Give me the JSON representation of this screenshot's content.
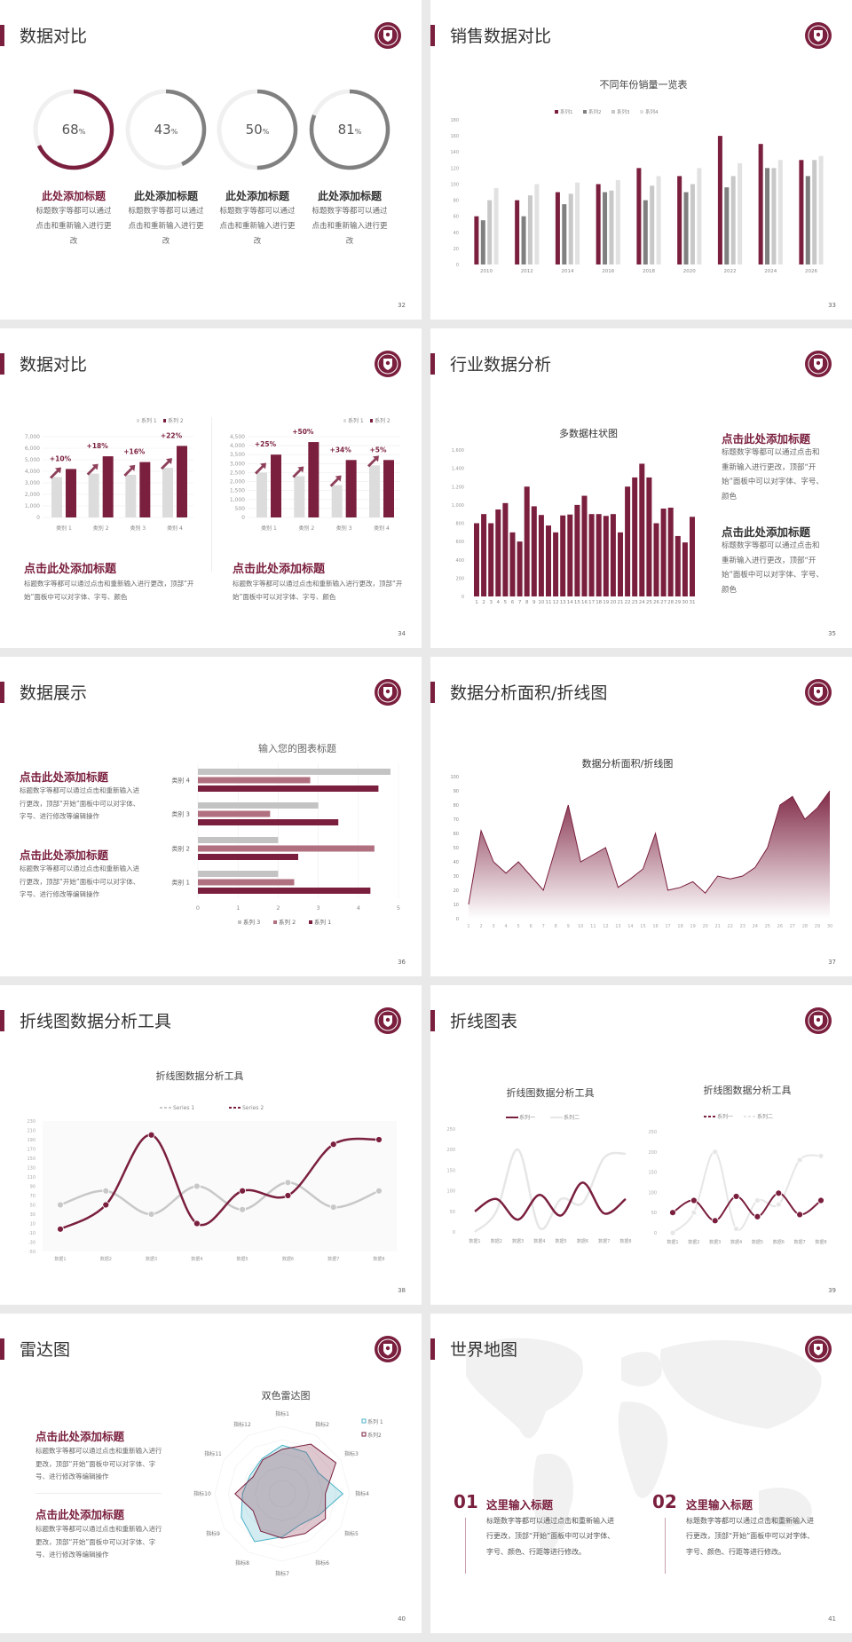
{
  "colors": {
    "accent": "#7a1f3d",
    "gray": "#808080",
    "light": "#c8c8c8",
    "lighter": "#e2e2e2",
    "pink": "#b07080",
    "teal": "#4bb3c8"
  },
  "logo_icon": "university-seal-icon",
  "slides": [
    {
      "page": "32",
      "title": "数据对比",
      "items": [
        {
          "value": 68,
          "title": "此处添加标题",
          "text": "标题数字等都可以通过点击和重新输入进行更改"
        },
        {
          "value": 43,
          "title": "此处添加标题",
          "text": "标题数字等都可以通过点击和重新输入进行更改"
        },
        {
          "value": 50,
          "title": "此处添加标题",
          "text": "标题数字等都可以通过点击和重新输入进行更改"
        },
        {
          "value": 81,
          "title": "此处添加标题",
          "text": "标题数字等都可以通过点击和重新输入进行更改"
        }
      ],
      "percent_sign": "%"
    },
    {
      "page": "33",
      "title": "销售数据对比"
    },
    {
      "page": "34",
      "title": "数据对比",
      "blocks": [
        {
          "title": "点击此处添加标题",
          "text": "标题数字等都可以通过点击和重新输入进行更改，顶部“开始”面板中可以对字体、字号、颜色"
        },
        {
          "title": "点击此处添加标题",
          "text": "标题数字等都可以通过点击和重新输入进行更改，顶部“开始”面板中可以对字体、字号、颜色"
        }
      ]
    },
    {
      "page": "35",
      "title": "行业数据分析",
      "blocks": [
        {
          "title": "点击此处添加标题",
          "text": "标题数字等都可以通过点击和重新输入进行更改，顶部“开始”面板中可以对字体、字号、颜色"
        },
        {
          "title": "点击此处添加标题",
          "text": "标题数字等都可以通过点击和重新输入进行更改，顶部“开始”面板中可以对字体、字号、颜色"
        }
      ]
    },
    {
      "page": "36",
      "title": "数据展示",
      "blocks": [
        {
          "title": "点击此处添加标题",
          "text": "标题数字等都可以通过点击和重新输入进行更改，顶部“开始”面板中可以对字体、字号、进行修改等编辑操作"
        },
        {
          "title": "点击此处添加标题",
          "text": "标题数字等都可以通过点击和重新输入进行更改，顶部“开始”面板中可以对字体、字号、进行修改等编辑操作"
        }
      ]
    },
    {
      "page": "37",
      "title": "数据分析面积/折线图"
    },
    {
      "page": "38",
      "title": "折线图数据分析工具"
    },
    {
      "page": "39",
      "title": "折线图表"
    },
    {
      "page": "40",
      "title": "雷达图",
      "blocks": [
        {
          "title": "点击此处添加标题",
          "text": "标题数字等都可以通过点击和重新输入进行更改，顶部“开始”面板中可以对字体、字号、进行修改等编辑操作"
        },
        {
          "title": "点击此处添加标题",
          "text": "标题数字等都可以通过点击和重新输入进行更改，顶部“开始”面板中可以对字体、字号、进行修改等编辑操作"
        }
      ]
    },
    {
      "page": "41",
      "title": "世界地图",
      "blocks": [
        {
          "num": "01",
          "title": "这里输入标题",
          "text": "标题数字等都可以通过点击和重新输入进行更改，顶部“开始”面板中可以对字体、字号、颜色、行距等进行修改。"
        },
        {
          "num": "02",
          "title": "这里输入标题",
          "text": "标题数字等都可以通过点击和重新输入进行更改，顶部“开始”面板中可以对字体、字号、颜色、行距等进行修改。"
        }
      ]
    }
  ],
  "chart_data": [
    {
      "id": "rings",
      "type": "pie",
      "title": "",
      "values": [
        68,
        43,
        50,
        81
      ]
    },
    {
      "id": "sales",
      "type": "bar",
      "title": "不同年份销量一览表",
      "categories": [
        "2010",
        "2012",
        "2014",
        "2016",
        "2018",
        "2020",
        "2022",
        "2024",
        "2026"
      ],
      "series": [
        {
          "name": "系列1",
          "values": [
            60,
            80,
            90,
            100,
            120,
            110,
            160,
            150,
            130
          ]
        },
        {
          "name": "系列2",
          "values": [
            55,
            60,
            75,
            90,
            80,
            90,
            96,
            120,
            110
          ]
        },
        {
          "name": "系列3",
          "values": [
            80,
            86,
            88,
            92,
            98,
            100,
            110,
            120,
            130
          ]
        },
        {
          "name": "系列4",
          "values": [
            95,
            100,
            102,
            105,
            110,
            120,
            126,
            130,
            135
          ]
        }
      ],
      "ylim": [
        0,
        180
      ],
      "ytick_step": 20,
      "legend": "top",
      "grid": false
    },
    {
      "id": "cmpA",
      "type": "bar",
      "title": "",
      "categories": [
        "类别 1",
        "类别 2",
        "类别 3",
        "类别 4"
      ],
      "series": [
        {
          "name": "系列 1",
          "values": [
            3500,
            3800,
            3700,
            4300
          ]
        },
        {
          "name": "系列 2",
          "values": [
            4200,
            5300,
            4800,
            6200
          ]
        }
      ],
      "annotations": [
        "+10%",
        "+18%",
        "+16%",
        "+22%"
      ],
      "ylim": [
        0,
        7000
      ],
      "ytick_step": 1000,
      "legend": "top-right",
      "grid": true
    },
    {
      "id": "cmpB",
      "type": "bar",
      "title": "",
      "categories": [
        "类别 1",
        "类别 2",
        "类别 3",
        "类别 4"
      ],
      "series": [
        {
          "name": "系列 1",
          "values": [
            2500,
            2300,
            1800,
            2900
          ]
        },
        {
          "name": "系列 2",
          "values": [
            3500,
            4200,
            3200,
            3200
          ]
        }
      ],
      "annotations": [
        "+25%",
        "+50%",
        "+34%",
        "+5%"
      ],
      "ylim": [
        0,
        4500
      ],
      "ytick_step": 500,
      "legend": "top-right",
      "grid": true
    },
    {
      "id": "multi",
      "type": "bar",
      "title": "多数据柱状图",
      "categories": [
        "1",
        "2",
        "3",
        "4",
        "5",
        "6",
        "7",
        "8",
        "9",
        "10",
        "11",
        "12",
        "13",
        "14",
        "15",
        "16",
        "17",
        "18",
        "19",
        "20",
        "21",
        "22",
        "23",
        "24",
        "25",
        "26",
        "27",
        "28",
        "29",
        "30",
        "31"
      ],
      "values": [
        800,
        900,
        800,
        950,
        1020,
        700,
        600,
        1200,
        985,
        890,
        775,
        700,
        885,
        895,
        1000,
        1100,
        900,
        900,
        880,
        900,
        700,
        1200,
        1300,
        1450,
        1300,
        800,
        960,
        970,
        660,
        590,
        870
      ],
      "ylim": [
        0,
        1600
      ],
      "ytick_step": 200,
      "grid": false
    },
    {
      "id": "hbar",
      "type": "bar",
      "orientation": "horizontal",
      "title": "输入您的图表标题",
      "categories": [
        "类别 1",
        "类别 2",
        "类别 3",
        "类别 4"
      ],
      "series": [
        {
          "name": "系列 1",
          "values": [
            4.3,
            2.5,
            3.5,
            4.5
          ]
        },
        {
          "name": "系列 2",
          "values": [
            2.4,
            4.4,
            1.8,
            2.8
          ]
        },
        {
          "name": "系列 3",
          "values": [
            2.0,
            2.0,
            3.0,
            4.8
          ]
        }
      ],
      "xlim": [
        0,
        5
      ],
      "xtick_step": 1,
      "legend": "bottom",
      "grid": true
    },
    {
      "id": "area",
      "type": "area",
      "title": "数据分析面积/折线图",
      "x": [
        1,
        2,
        3,
        4,
        5,
        6,
        7,
        8,
        9,
        10,
        11,
        12,
        13,
        14,
        15,
        16,
        17,
        18,
        19,
        20,
        21,
        22,
        23,
        24,
        25,
        26,
        27,
        28,
        29,
        30
      ],
      "values": [
        10,
        62,
        40,
        32,
        40,
        30,
        20,
        50,
        80,
        40,
        45,
        50,
        22,
        28,
        35,
        60,
        20,
        22,
        26,
        18,
        30,
        28,
        30,
        36,
        50,
        80,
        86,
        70,
        78,
        90
      ],
      "ylim": [
        0,
        100
      ],
      "ytick_step": 10,
      "grid": false
    },
    {
      "id": "line1",
      "type": "line",
      "title": "折线图数据分析工具",
      "categories": [
        "数据1",
        "数据2",
        "数据3",
        "数据4",
        "数据5",
        "数据6",
        "数据7",
        "数据8"
      ],
      "series": [
        {
          "name": "Series 1",
          "values": [
            50,
            80,
            30,
            90,
            40,
            98,
            45,
            80
          ]
        },
        {
          "name": "Series 2",
          "values": [
            -2,
            50,
            200,
            10,
            80,
            70,
            180,
            190
          ]
        }
      ],
      "ylim": [
        -50,
        230
      ],
      "ytick_step": 20,
      "legend": "top"
    },
    {
      "id": "line2",
      "type": "line",
      "title": "折线图数据分析工具",
      "categories": [
        "数据1",
        "数据2",
        "数据3",
        "数据4",
        "数据5",
        "数据6",
        "数据7",
        "数据8"
      ],
      "series": [
        {
          "name": "系列一",
          "values": [
            50,
            80,
            30,
            90,
            40,
            120,
            45,
            80
          ]
        },
        {
          "name": "系列二",
          "values": [
            0,
            50,
            200,
            10,
            80,
            70,
            180,
            190
          ]
        }
      ],
      "ylim": [
        0,
        250
      ],
      "ytick_step": 50,
      "legend": "top"
    },
    {
      "id": "line3",
      "type": "line",
      "title": "折线图数据分析工具",
      "categories": [
        "数据1",
        "数据2",
        "数据3",
        "数据4",
        "数据5",
        "数据6",
        "数据7",
        "数据8"
      ],
      "series": [
        {
          "name": "系列一",
          "values": [
            50,
            80,
            30,
            90,
            40,
            98,
            45,
            80
          ]
        },
        {
          "name": "系列二",
          "values": [
            0,
            50,
            200,
            10,
            80,
            70,
            180,
            190
          ]
        }
      ],
      "ylim": [
        0,
        250
      ],
      "ytick_step": 50,
      "legend": "top"
    },
    {
      "id": "radar",
      "type": "radar",
      "title": "双色雷达图",
      "categories": [
        "指标1",
        "指标2",
        "指标3",
        "指标4",
        "指标5",
        "指标6",
        "指标7",
        "指标8",
        "指标9",
        "指标10",
        "指标11",
        "指标12"
      ],
      "series": [
        {
          "name": "系列 1",
          "values": [
            72,
            71,
            62,
            90,
            63,
            53,
            64,
            82,
            70,
            59,
            55,
            60
          ]
        },
        {
          "name": "系列2",
          "values": [
            66,
            85,
            92,
            64,
            74,
            68,
            66,
            64,
            50,
            70,
            50,
            58
          ]
        }
      ],
      "legend": "top-right"
    }
  ]
}
